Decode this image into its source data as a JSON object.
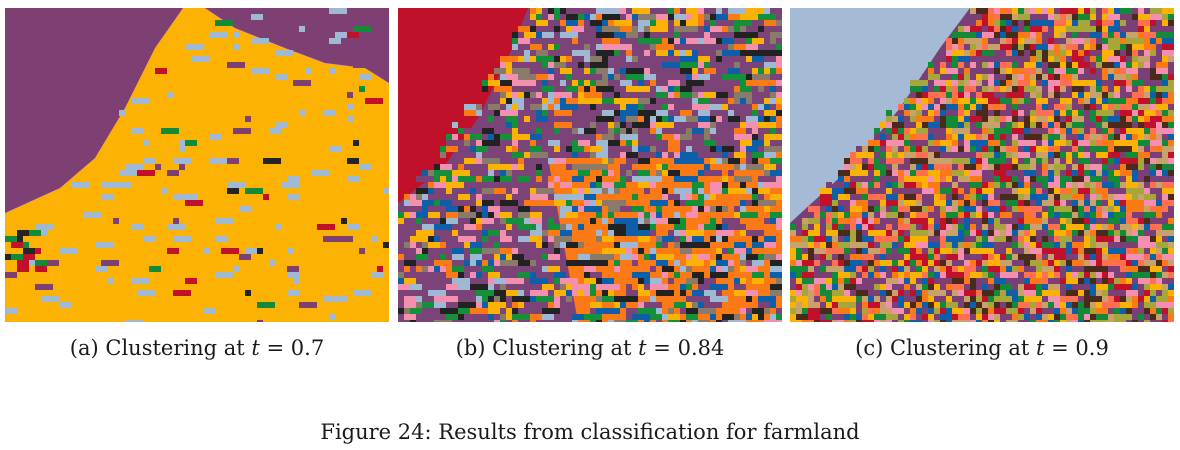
{
  "panels": [
    {
      "label": "(a)",
      "caption_text": "Clustering at ",
      "threshold_symbol": "t",
      "threshold_relation": " = ",
      "threshold_value": "0.7",
      "colors": [
        "#7e3f73",
        "#fbb203",
        "#9fb9d4",
        "#c0102a",
        "#128a3a",
        "#242424"
      ]
    },
    {
      "label": "(b)",
      "caption_text": "Clustering at ",
      "threshold_symbol": "t",
      "threshold_relation": " = ",
      "threshold_value": "0.84",
      "colors": [
        "#c0102a",
        "#7b4378",
        "#fc7a16",
        "#f48fb0",
        "#0c5fa8",
        "#148f3a",
        "#fbb203",
        "#9fb9d4",
        "#222222",
        "#8a7a6a"
      ]
    },
    {
      "label": "(c)",
      "caption_text": "Clustering at ",
      "threshold_symbol": "t",
      "threshold_relation": " = ",
      "threshold_value": "0.9",
      "colors": [
        "#a5bad4",
        "#7b3f78",
        "#fc7a16",
        "#f48fb0",
        "#c9a16b",
        "#128a3a",
        "#c0102a",
        "#0c5fa8",
        "#fbb203",
        "#a7a63a",
        "#4a2a1a",
        "#ff6f50"
      ]
    }
  ],
  "figure": {
    "label": "Figure 24:",
    "text": "Results from classification for farmland"
  }
}
